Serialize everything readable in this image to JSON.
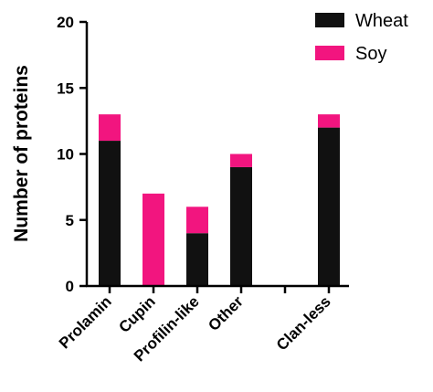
{
  "chart_data": {
    "type": "bar",
    "stacked": true,
    "categories": [
      "Prolamin",
      "Cupin",
      "Profilin-like",
      "Other",
      "",
      "Clan-less"
    ],
    "series": [
      {
        "name": "Wheat",
        "color": "#111111",
        "values": [
          11,
          0,
          4,
          9,
          0,
          12
        ]
      },
      {
        "name": "Soy",
        "color": "#f2157f",
        "values": [
          2,
          7,
          2,
          1,
          0,
          1
        ]
      }
    ],
    "title": "",
    "xlabel": "",
    "ylabel": "Number of proteins",
    "ylim": [
      0,
      20
    ],
    "yticks": [
      0,
      5,
      10,
      15,
      20
    ],
    "grid": false,
    "legend_position": "top-right"
  }
}
